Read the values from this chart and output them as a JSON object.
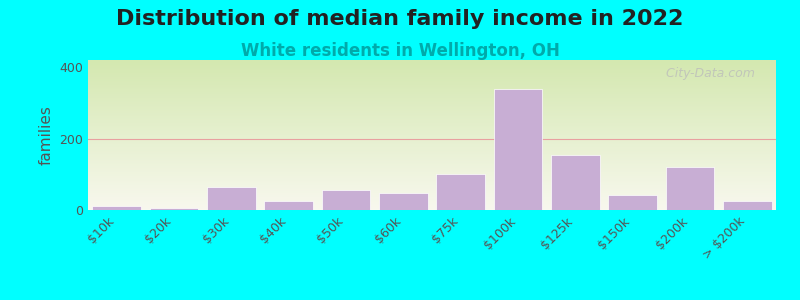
{
  "title": "Distribution of median family income in 2022",
  "subtitle": "White residents in Wellington, OH",
  "ylabel": "families",
  "categories": [
    "$10k",
    "$20k",
    "$30k",
    "$40k",
    "$50k",
    "$60k",
    "$75k",
    "$100k",
    "$125k",
    "$150k",
    "$200k",
    "> $200k"
  ],
  "values": [
    12,
    5,
    65,
    25,
    55,
    48,
    100,
    340,
    155,
    42,
    120,
    25
  ],
  "bar_color": "#c8aed4",
  "background_color": "#00ffff",
  "plot_bg_gradient_top": "#d4e8b0",
  "plot_bg_gradient_bottom": "#f8f8ee",
  "grid_color": "#e8a0a0",
  "yticks": [
    0,
    200,
    400
  ],
  "ylim": [
    0,
    420
  ],
  "title_fontsize": 16,
  "subtitle_fontsize": 12,
  "subtitle_color": "#00aaaa",
  "ylabel_fontsize": 11,
  "tick_fontsize": 9,
  "watermark_text": "  City-Data.com"
}
